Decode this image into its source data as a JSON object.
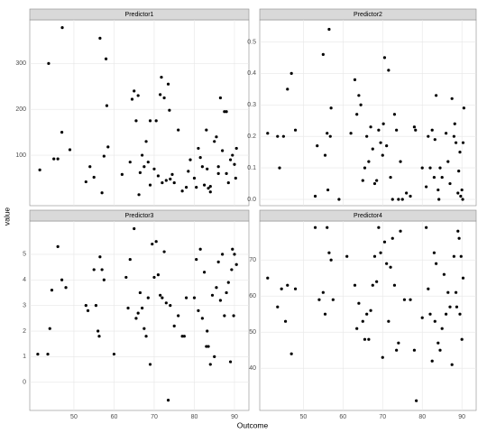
{
  "axis_labels": {
    "x": "Outcome",
    "y": "value"
  },
  "chart_data": [
    {
      "type": "scatter",
      "title": "Predictor1",
      "color": "#000000",
      "grid": true,
      "xlim": [
        39,
        93.6
      ],
      "xticks": [
        50,
        60,
        70,
        80,
        90
      ],
      "ylim": [
        -10,
        395
      ],
      "yticks": [
        100,
        200,
        300
      ],
      "x": [
        41.5,
        43.7,
        45,
        46,
        47,
        47.1,
        49,
        53,
        54,
        55,
        56.5,
        57,
        57.5,
        58,
        58.2,
        58.5,
        62,
        64,
        64.5,
        65,
        65.5,
        66,
        66.2,
        66.5,
        67,
        67.5,
        68,
        68.5,
        69,
        69,
        70,
        70.5,
        71,
        71.5,
        71.8,
        72,
        72.5,
        73,
        73.5,
        73.8,
        74,
        74.5,
        75,
        76,
        77,
        78,
        78.5,
        79,
        80,
        80.5,
        81,
        81.5,
        82,
        82.5,
        83,
        83.2,
        83.5,
        84,
        85,
        85.5,
        86,
        86.5,
        87,
        87.5,
        88,
        88.5,
        89,
        89.5,
        90,
        90.3,
        90.5,
        84,
        86,
        88
      ],
      "values": [
        68,
        300,
        92,
        92,
        150,
        378,
        112,
        42,
        75,
        52,
        355,
        18,
        98,
        310,
        208,
        118,
        58,
        85,
        222,
        240,
        175,
        230,
        14,
        62,
        100,
        75,
        130,
        85,
        175,
        35,
        70,
        175,
        55,
        232,
        270,
        40,
        225,
        45,
        255,
        198,
        48,
        58,
        40,
        155,
        22,
        30,
        65,
        90,
        50,
        30,
        115,
        95,
        75,
        35,
        155,
        70,
        28,
        20,
        130,
        140,
        75,
        225,
        110,
        195,
        60,
        40,
        90,
        100,
        80,
        50,
        115,
        32,
        60,
        195
      ]
    },
    {
      "type": "scatter",
      "title": "Predictor2",
      "color": "#000000",
      "grid": true,
      "xlim": [
        39,
        93.6
      ],
      "xticks": [
        50,
        60,
        70,
        80,
        90
      ],
      "ylim": [
        -0.02,
        0.57
      ],
      "yticks": [
        {
          "value": 0,
          "label": "0.0"
        },
        0.1,
        0.2,
        0.3,
        0.4,
        0.5
      ],
      "x": [
        41,
        43.5,
        44,
        45,
        46,
        47,
        48,
        53,
        53.5,
        55,
        55.5,
        56,
        56.2,
        56.5,
        56.8,
        57,
        59,
        62,
        63,
        63.5,
        64,
        64.5,
        65,
        65.5,
        66,
        66.5,
        67,
        67.5,
        68,
        68.5,
        69,
        69.5,
        70,
        70.2,
        70.5,
        71,
        71.5,
        72,
        72.5,
        73,
        73.5,
        74,
        74.5,
        75,
        76,
        77,
        78,
        78.3,
        80,
        81,
        81.5,
        82,
        82.5,
        83,
        83.2,
        83.5,
        84,
        84.2,
        84.5,
        85,
        86,
        86.5,
        87,
        87.5,
        88,
        88.2,
        88.5,
        89,
        89.2,
        89.5,
        89.7,
        90,
        90.2,
        90.5,
        90.3
      ],
      "values": [
        0.21,
        0.2,
        0.1,
        0.2,
        0.35,
        0.4,
        0.22,
        0.01,
        0.17,
        0.46,
        0.14,
        0.21,
        0.03,
        0.54,
        0.2,
        0.29,
        0.0,
        0.21,
        0.38,
        0.27,
        0.33,
        0.3,
        0.06,
        0.1,
        0.2,
        0.12,
        0.23,
        0.16,
        0.05,
        0.06,
        0.22,
        0.18,
        0.14,
        0.24,
        0.45,
        0.17,
        0.41,
        0.07,
        0.0,
        0.27,
        0.22,
        0.0,
        0.12,
        0.0,
        0.02,
        0.01,
        0.23,
        0.22,
        0.1,
        0.04,
        0.2,
        0.1,
        0.22,
        0.07,
        0.19,
        0.33,
        0.03,
        0.0,
        0.1,
        0.07,
        0.21,
        0.12,
        0.05,
        0.32,
        0.2,
        0.24,
        0.18,
        0.02,
        0.09,
        0.15,
        0.01,
        0.03,
        0.0,
        0.29,
        0.18
      ]
    },
    {
      "type": "scatter",
      "title": "Predictor3",
      "color": "#000000",
      "grid": true,
      "xlim": [
        39,
        93.6
      ],
      "xticks": [
        50,
        60,
        70,
        80,
        90
      ],
      "ylim": [
        -1.1,
        6.3
      ],
      "yticks": [
        0,
        1,
        2,
        3,
        4,
        5
      ],
      "x": [
        41,
        43.5,
        44,
        44.5,
        46,
        47,
        48,
        53,
        53.5,
        55,
        55.5,
        56,
        56.3,
        56.5,
        57,
        57.5,
        60,
        63,
        63.5,
        64,
        65,
        65.5,
        66,
        66.5,
        67,
        67.5,
        68,
        68.5,
        69,
        69.5,
        70,
        70.5,
        71,
        71.5,
        72,
        72.5,
        73,
        73.5,
        74,
        75,
        76,
        77,
        77.5,
        78,
        80,
        80.5,
        81,
        81.5,
        82,
        82.5,
        83,
        83.2,
        83.5,
        84,
        84.5,
        85,
        85.5,
        86,
        86.5,
        87,
        87.5,
        88,
        88.5,
        89,
        89.3,
        89.5,
        89.8,
        90,
        90.5
      ],
      "values": [
        1.1,
        1.1,
        2.1,
        3.6,
        5.3,
        4.0,
        3.7,
        3.0,
        2.8,
        4.4,
        3.0,
        2.0,
        1.8,
        4.9,
        4.4,
        4.0,
        1.1,
        4.1,
        2.9,
        4.8,
        6.0,
        2.5,
        2.7,
        3.5,
        2.9,
        2.1,
        1.8,
        3.3,
        0.7,
        5.4,
        4.1,
        5.5,
        4.2,
        3.4,
        3.3,
        5.1,
        3.1,
        -0.7,
        3.0,
        2.2,
        2.6,
        1.8,
        1.8,
        3.3,
        3.3,
        4.8,
        2.8,
        5.2,
        2.5,
        4.3,
        1.4,
        2.0,
        1.4,
        0.7,
        3.4,
        1.0,
        3.7,
        4.7,
        3.2,
        5.0,
        2.6,
        3.5,
        3.9,
        0.8,
        4.4,
        5.2,
        2.6,
        5.0,
        4.6
      ]
    },
    {
      "type": "scatter",
      "title": "Predictor4",
      "color": "#000000",
      "grid": true,
      "xlim": [
        39,
        93.6
      ],
      "xticks": [
        50,
        60,
        70,
        80,
        90
      ],
      "ylim": [
        28.3,
        80.8
      ],
      "yticks": [
        40,
        50,
        60,
        70
      ],
      "x": [
        41,
        43.5,
        44.5,
        45.5,
        46,
        47,
        48,
        53,
        54,
        55,
        55.5,
        56,
        56.5,
        57,
        57.5,
        61,
        63,
        63.5,
        64,
        65,
        65.5,
        66,
        66.5,
        67,
        67.5,
        68,
        68.5,
        69,
        69.5,
        70,
        70.5,
        71,
        71.5,
        72,
        72.5,
        73,
        73.5,
        74,
        74.5,
        75.5,
        77,
        78,
        78.5,
        80,
        81,
        81.5,
        82,
        82.5,
        83,
        83.2,
        83.5,
        84,
        84.5,
        85,
        85.5,
        86,
        86.5,
        87,
        87.5,
        88,
        88.5,
        88.7,
        89,
        89.3,
        89.5,
        89.8,
        90,
        90.3
      ],
      "values": [
        65,
        57,
        62,
        53,
        63,
        44,
        62,
        79,
        59,
        61,
        55,
        79,
        72,
        70,
        59,
        71,
        63,
        51,
        58,
        53,
        48,
        55,
        48,
        56,
        63,
        71,
        64,
        79,
        72,
        43,
        75,
        69,
        53,
        68,
        76,
        63,
        45,
        47,
        78,
        59,
        59,
        45,
        31,
        54,
        79,
        62,
        55,
        42,
        72,
        53,
        69,
        47,
        45,
        51,
        66,
        55,
        61,
        57,
        41,
        71,
        61,
        57,
        78,
        76,
        55,
        71,
        48,
        65
      ]
    }
  ]
}
